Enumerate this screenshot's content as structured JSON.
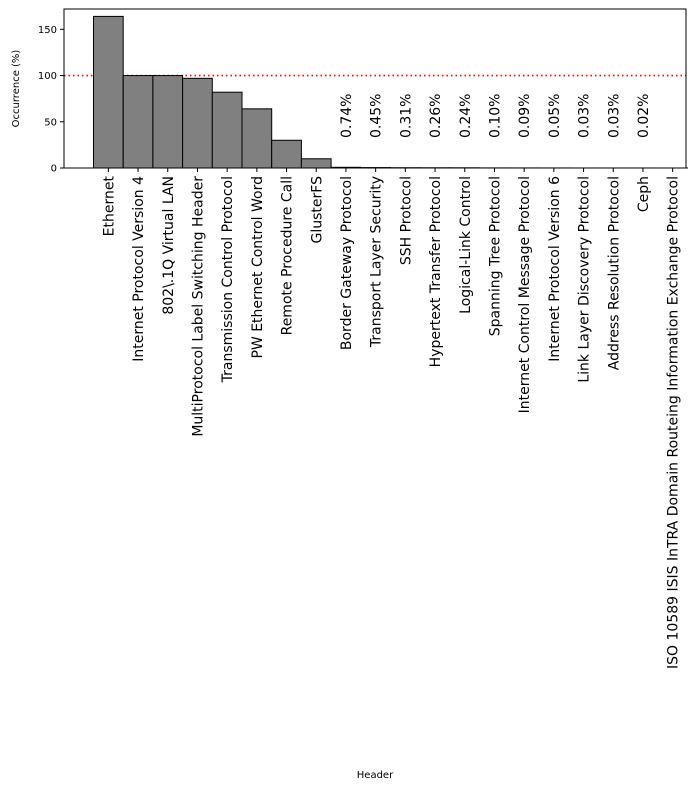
{
  "chart_data": {
    "type": "bar",
    "title": "",
    "xlabel": "Header",
    "ylabel": "Occurrence (%)",
    "ylim": [
      0,
      172
    ],
    "yticks": [
      0,
      50,
      100,
      150
    ],
    "reference_line": {
      "y": 100,
      "style": "dotted",
      "color": "#ff0000"
    },
    "bar_color": "#808080",
    "edge_color": "#000000",
    "categories": [
      "Ethernet",
      "Internet Protocol Version 4",
      "802\\.1Q Virtual LAN",
      "MultiProtocol Label Switching Header",
      "Transmission Control Protocol",
      "PW Ethernet Control Word",
      "Remote Procedure Call",
      "GlusterFS",
      "Border Gateway Protocol",
      "Transport Layer Security",
      "SSH Protocol",
      "Hypertext Transfer Protocol",
      "Logical-Link Control",
      "Spanning Tree Protocol",
      "Internet Control Message Protocol",
      "Internet Protocol Version 6",
      "Link Layer Discovery Protocol",
      "Address Resolution Protocol",
      "Ceph",
      "ISO 10589 ISIS InTRA Domain Routeing Information Exchange Protocol"
    ],
    "values": [
      164,
      100,
      100,
      97,
      82,
      64,
      30,
      10,
      0.74,
      0.45,
      0.31,
      0.26,
      0.24,
      0.1,
      0.09,
      0.05,
      0.03,
      0.03,
      0.02,
      0.01
    ],
    "data_labels": [
      "",
      "",
      "",
      "",
      "",
      "",
      "",
      "",
      "0.74%",
      "0.45%",
      "0.31%",
      "0.26%",
      "0.24%",
      "0.10%",
      "0.09%",
      "0.05%",
      "0.03%",
      "0.03%",
      "0.02%",
      ""
    ]
  }
}
